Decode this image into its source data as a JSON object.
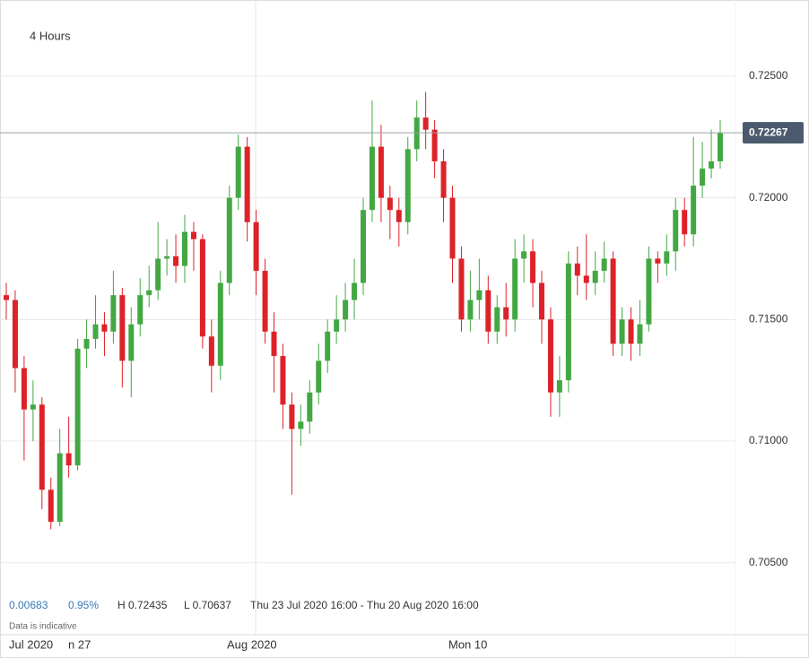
{
  "chart_data": {
    "type": "candlestick",
    "title": "4 Hours",
    "open": [
      0.716,
      0.7158,
      0.713,
      0.7113,
      0.7115,
      0.708,
      0.70668,
      0.7095,
      0.709,
      0.7138,
      0.7142,
      0.7148,
      0.7145,
      0.716,
      0.7133,
      0.7148,
      0.716,
      0.7162,
      0.7175,
      0.7176,
      0.7172,
      0.7186,
      0.7183,
      0.7143,
      0.7131,
      0.7165,
      0.72,
      0.7221,
      0.719,
      0.717,
      0.7145,
      0.7135,
      0.7115,
      0.7105,
      0.7108,
      0.712,
      0.7133,
      0.7145,
      0.715,
      0.7158,
      0.7165,
      0.7195,
      0.7221,
      0.72,
      0.7195,
      0.719,
      0.722,
      0.7233,
      0.7228,
      0.7215,
      0.72,
      0.7175,
      0.715,
      0.7158,
      0.7162,
      0.7145,
      0.7155,
      0.715,
      0.7175,
      0.7178,
      0.7165,
      0.715,
      0.712,
      0.7125,
      0.7173,
      0.7168,
      0.7165,
      0.717,
      0.7175,
      0.714,
      0.715,
      0.714,
      0.7148,
      0.7175,
      0.7173,
      0.7178,
      0.7195,
      0.7185,
      0.7205,
      0.7212,
      0.7215
    ],
    "high": [
      0.7165,
      0.7162,
      0.7135,
      0.7125,
      0.7118,
      0.7085,
      0.7105,
      0.711,
      0.7142,
      0.715,
      0.716,
      0.7153,
      0.717,
      0.7163,
      0.7155,
      0.7167,
      0.7172,
      0.719,
      0.7183,
      0.7185,
      0.7193,
      0.719,
      0.7185,
      0.715,
      0.717,
      0.7205,
      0.7226,
      0.7225,
      0.7195,
      0.7175,
      0.7153,
      0.714,
      0.712,
      0.7115,
      0.7125,
      0.714,
      0.715,
      0.716,
      0.7165,
      0.7175,
      0.72,
      0.724,
      0.723,
      0.7205,
      0.72,
      0.7225,
      0.724,
      0.72435,
      0.7232,
      0.722,
      0.7205,
      0.718,
      0.717,
      0.7175,
      0.7168,
      0.716,
      0.7165,
      0.7183,
      0.7185,
      0.7183,
      0.717,
      0.7155,
      0.7135,
      0.7178,
      0.718,
      0.7185,
      0.7178,
      0.7182,
      0.7178,
      0.7155,
      0.7155,
      0.7158,
      0.718,
      0.7178,
      0.7185,
      0.72,
      0.72,
      0.7225,
      0.7223,
      0.7228,
      0.7232
    ],
    "low": [
      0.715,
      0.712,
      0.7092,
      0.71,
      0.7072,
      0.70637,
      0.7065,
      0.7085,
      0.7088,
      0.713,
      0.7138,
      0.7135,
      0.714,
      0.7122,
      0.7118,
      0.7143,
      0.7155,
      0.7158,
      0.7168,
      0.7165,
      0.7165,
      0.717,
      0.7138,
      0.712,
      0.7125,
      0.716,
      0.7195,
      0.7182,
      0.716,
      0.714,
      0.712,
      0.7105,
      0.7078,
      0.7098,
      0.7103,
      0.7115,
      0.7128,
      0.714,
      0.7145,
      0.715,
      0.716,
      0.719,
      0.719,
      0.7183,
      0.718,
      0.7185,
      0.7215,
      0.722,
      0.7208,
      0.719,
      0.7165,
      0.7145,
      0.7145,
      0.715,
      0.714,
      0.714,
      0.7143,
      0.7145,
      0.7165,
      0.7155,
      0.714,
      0.711,
      0.711,
      0.712,
      0.716,
      0.7158,
      0.716,
      0.7165,
      0.7135,
      0.7135,
      0.7133,
      0.7135,
      0.7145,
      0.7165,
      0.7168,
      0.717,
      0.718,
      0.718,
      0.72,
      0.7208,
      0.7212
    ],
    "close": [
      0.7158,
      0.713,
      0.7113,
      0.7115,
      0.708,
      0.70668,
      0.7095,
      0.709,
      0.7138,
      0.7142,
      0.7148,
      0.7145,
      0.716,
      0.7133,
      0.7148,
      0.716,
      0.7162,
      0.7175,
      0.7176,
      0.7172,
      0.7186,
      0.7183,
      0.7143,
      0.7131,
      0.7165,
      0.72,
      0.7221,
      0.719,
      0.717,
      0.7145,
      0.7135,
      0.7115,
      0.7105,
      0.7108,
      0.712,
      0.7133,
      0.7145,
      0.715,
      0.7158,
      0.7165,
      0.7195,
      0.7221,
      0.72,
      0.7195,
      0.719,
      0.722,
      0.7233,
      0.7228,
      0.7215,
      0.72,
      0.7175,
      0.715,
      0.7158,
      0.7162,
      0.7145,
      0.7155,
      0.715,
      0.7175,
      0.7178,
      0.7165,
      0.715,
      0.712,
      0.7125,
      0.7173,
      0.7168,
      0.7165,
      0.717,
      0.7175,
      0.714,
      0.715,
      0.714,
      0.7148,
      0.7175,
      0.7173,
      0.7178,
      0.7195,
      0.7185,
      0.7205,
      0.7212,
      0.7215,
      0.72267
    ],
    "up_color": "#43a843",
    "down_color": "#dd2228",
    "ylim": [
      0.70418,
      0.72813
    ],
    "yticks": [
      {
        "value": 0.705,
        "label": "0.70500"
      },
      {
        "value": 0.71,
        "label": "0.71000"
      },
      {
        "value": 0.715,
        "label": "0.71500"
      },
      {
        "value": 0.72,
        "label": "0.72000"
      },
      {
        "value": 0.725,
        "label": "0.72500"
      }
    ],
    "grid": true,
    "last_price": {
      "value": 0.72267,
      "label": "0.72267"
    },
    "x_labels": [
      "Jul 2020",
      "n 27",
      "Aug 2020",
      "Mon 10"
    ],
    "info": {
      "change": "0.00683",
      "change_pct": "0.95%",
      "high": "H 0.72435",
      "low": "L 0.70637",
      "range": "Thu 23 Jul 2020 16:00 - Thu 20 Aug 2020 16:00",
      "note": "Data is indicative"
    }
  }
}
